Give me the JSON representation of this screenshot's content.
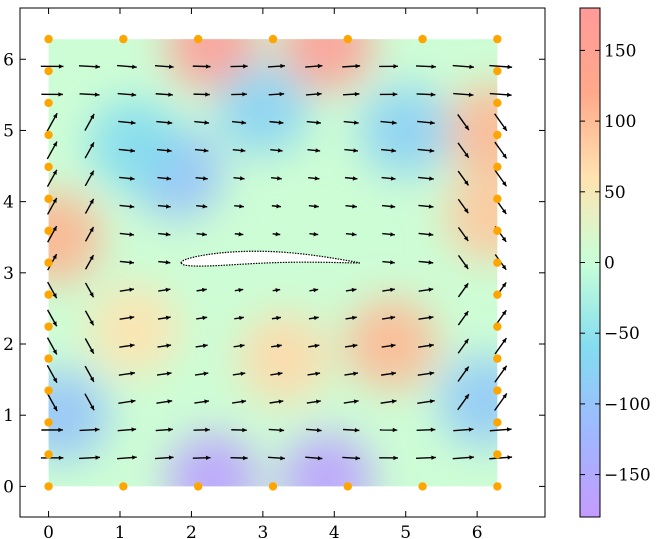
{
  "chart_data": {
    "type": "heatmap",
    "title": "",
    "xlabel": "",
    "ylabel": "",
    "xlim": [
      -0.4,
      6.95
    ],
    "ylim": [
      -0.43,
      6.72
    ],
    "xticks": [
      0,
      1,
      2,
      3,
      4,
      5,
      6
    ],
    "yticks": [
      0,
      1,
      2,
      3,
      4,
      5,
      6
    ],
    "xtick_labels": [
      "0",
      "1",
      "2",
      "3",
      "4",
      "5",
      "6"
    ],
    "ytick_labels": [
      "0",
      "1",
      "2",
      "3",
      "4",
      "5",
      "6"
    ],
    "field_extent": {
      "x": [
        0,
        6.283
      ],
      "y": [
        0,
        6.283
      ]
    },
    "colorbar": {
      "range": [
        -180,
        180
      ],
      "ticks": [
        -150,
        -100,
        -50,
        0,
        50,
        100,
        150
      ],
      "tick_labels": [
        "−150",
        "−100",
        "−50",
        "0",
        "50",
        "100",
        "150"
      ],
      "colormap": [
        "#c49bff",
        "#9fb8ff",
        "#84dcf0",
        "#c8ffd8",
        "#ffe3b0",
        "#ffa98a",
        "#ff9a9a"
      ]
    },
    "heat_blobs": [
      {
        "x": 2.3,
        "y": 6.2,
        "value": 170
      },
      {
        "x": 3.9,
        "y": 6.2,
        "value": 165
      },
      {
        "x": 0.1,
        "y": 3.5,
        "value": 110
      },
      {
        "x": 6.2,
        "y": 5.0,
        "value": 105
      },
      {
        "x": 6.2,
        "y": 3.8,
        "value": 90
      },
      {
        "x": 4.8,
        "y": 2.0,
        "value": 105
      },
      {
        "x": 3.3,
        "y": 1.8,
        "value": 70
      },
      {
        "x": 1.2,
        "y": 2.2,
        "value": 60
      },
      {
        "x": 1.8,
        "y": 4.4,
        "value": -105
      },
      {
        "x": 3.0,
        "y": 5.3,
        "value": -75
      },
      {
        "x": 5.0,
        "y": 5.0,
        "value": -80
      },
      {
        "x": 0.2,
        "y": 1.0,
        "value": -100
      },
      {
        "x": 2.3,
        "y": 0.1,
        "value": -165
      },
      {
        "x": 3.9,
        "y": 0.1,
        "value": -165
      },
      {
        "x": 6.1,
        "y": 1.2,
        "value": -90
      },
      {
        "x": 1.2,
        "y": 4.8,
        "value": -60
      }
    ],
    "boundary_points": [
      [
        0,
        0
      ],
      [
        1.047,
        0
      ],
      [
        2.094,
        0
      ],
      [
        3.142,
        0
      ],
      [
        4.189,
        0
      ],
      [
        5.236,
        0
      ],
      [
        6.283,
        0
      ],
      [
        0,
        6.283
      ],
      [
        1.047,
        6.283
      ],
      [
        2.094,
        6.283
      ],
      [
        3.142,
        6.283
      ],
      [
        4.189,
        6.283
      ],
      [
        5.236,
        6.283
      ],
      [
        6.283,
        6.283
      ],
      [
        0,
        0.449
      ],
      [
        0,
        0.898
      ],
      [
        0,
        1.346
      ],
      [
        0,
        1.795
      ],
      [
        0,
        2.244
      ],
      [
        0,
        2.693
      ],
      [
        0,
        3.142
      ],
      [
        0,
        3.59
      ],
      [
        0,
        4.039
      ],
      [
        0,
        4.488
      ],
      [
        0,
        4.937
      ],
      [
        0,
        5.386
      ],
      [
        0,
        5.834
      ],
      [
        6.283,
        0.449
      ],
      [
        6.283,
        0.898
      ],
      [
        6.283,
        1.346
      ],
      [
        6.283,
        1.795
      ],
      [
        6.283,
        2.244
      ],
      [
        6.283,
        2.693
      ],
      [
        6.283,
        3.142
      ],
      [
        6.283,
        3.59
      ],
      [
        6.283,
        4.039
      ],
      [
        6.283,
        4.488
      ],
      [
        6.283,
        4.937
      ],
      [
        6.283,
        5.386
      ],
      [
        6.283,
        5.834
      ]
    ],
    "airfoil": {
      "leading_edge": [
        1.85,
        3.14
      ],
      "trailing_edge": [
        4.35,
        3.14
      ],
      "thickness": 0.36
    },
    "colors": {
      "boundary_points": "#ffa500",
      "arrows": "#000000",
      "airfoil_fill": "#ffffff",
      "airfoil_edge": "#000000"
    }
  }
}
